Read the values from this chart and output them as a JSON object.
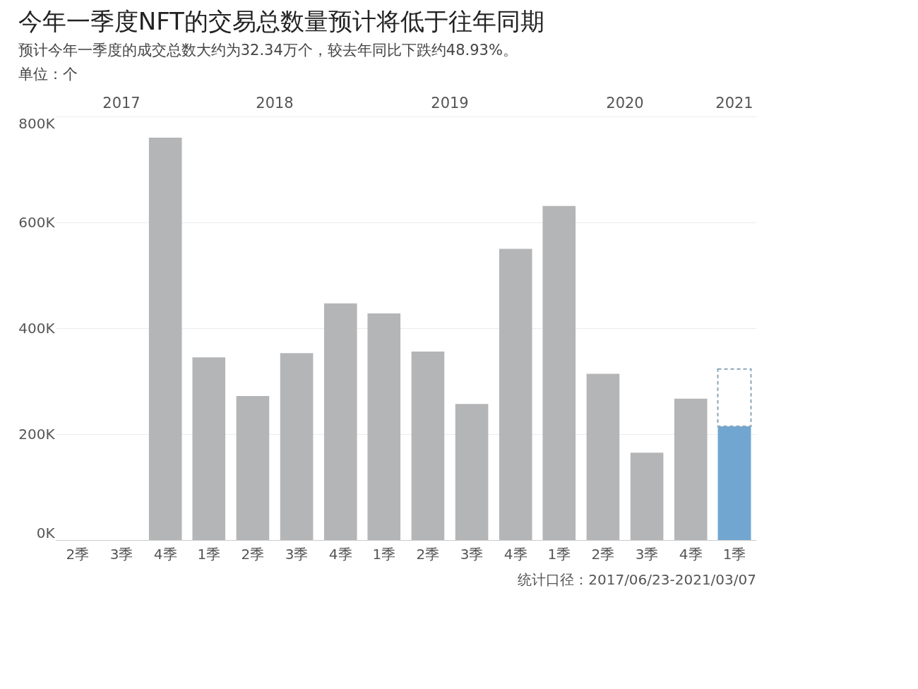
{
  "chart_data": [
    {
      "type": "bar",
      "title": "今年一季度NFT的交易总数量预计将低于往年同期",
      "subtitle": "预计今年一季度的成交总数大约为32.34万个，较去年同比下跌约48.93%。",
      "ylabel": "单位：个",
      "xlabel": "2017",
      "annotations": [
        "统计口径：2017/06/23-2021/03/07"
      ],
      "categories": [
        "2季",
        "3季",
        "4季"
      ],
      "values": [
        0,
        0,
        760000
      ],
      "color": "#b4b5b7",
      "ylim": [
        0,
        800000
      ],
      "yticks": [
        {
          "value": 0,
          "label": "0K"
        },
        {
          "value": 200000,
          "label": "200K"
        },
        {
          "value": 400000,
          "label": "400K"
        },
        {
          "value": 600000,
          "label": "600K"
        },
        {
          "value": 800000,
          "label": "800K"
        }
      ],
      "grid": "y",
      "legend": false
    },
    {
      "type": "bar",
      "xlabel": "2018",
      "categories": [
        "1季",
        "2季",
        "3季",
        "4季"
      ],
      "values": [
        345000,
        272000,
        353000,
        447000
      ],
      "color": "#b4b5b7",
      "ylim": [
        0,
        800000
      ],
      "yticks": [
        0,
        200000,
        400000,
        600000,
        800000
      ],
      "grid": "y",
      "legend": false,
      "tick_labels": "x"
    },
    {
      "type": "bar",
      "xlabel": "2019",
      "categories": [
        "1季",
        "2季",
        "3季",
        "4季"
      ],
      "values": [
        428000,
        356000,
        257000,
        550000
      ],
      "color": "#b4b5b7",
      "ylim": [
        0,
        800000
      ],
      "yticks": [
        0,
        200000,
        400000,
        600000,
        800000
      ],
      "grid": "y",
      "legend": false,
      "tick_labels": "x"
    },
    {
      "type": "bar",
      "xlabel": "2020",
      "categories": [
        "1季",
        "2季",
        "3季",
        "4季"
      ],
      "values": [
        631000,
        314000,
        165000,
        267000
      ],
      "color": "#b4b5b7",
      "ylim": [
        0,
        800000
      ],
      "yticks": [
        0,
        200000,
        400000,
        600000,
        800000
      ],
      "grid": "y",
      "legend": false,
      "tick_labels": "x"
    },
    {
      "type": "bar",
      "xlabel": "2021",
      "categories": [
        "1季"
      ],
      "stacked": true,
      "series": [
        {
          "color": "#71a6d0",
          "values": [
            215000
          ]
        },
        {
          "color": "#8aa6b8",
          "values": [
            108000
          ],
          "line_style": "dashed"
        }
      ],
      "ylim": [
        0,
        800000
      ],
      "yticks": [
        0,
        200000,
        400000,
        600000,
        800000
      ],
      "grid": "y",
      "legend": false,
      "tick_labels": "x"
    }
  ]
}
